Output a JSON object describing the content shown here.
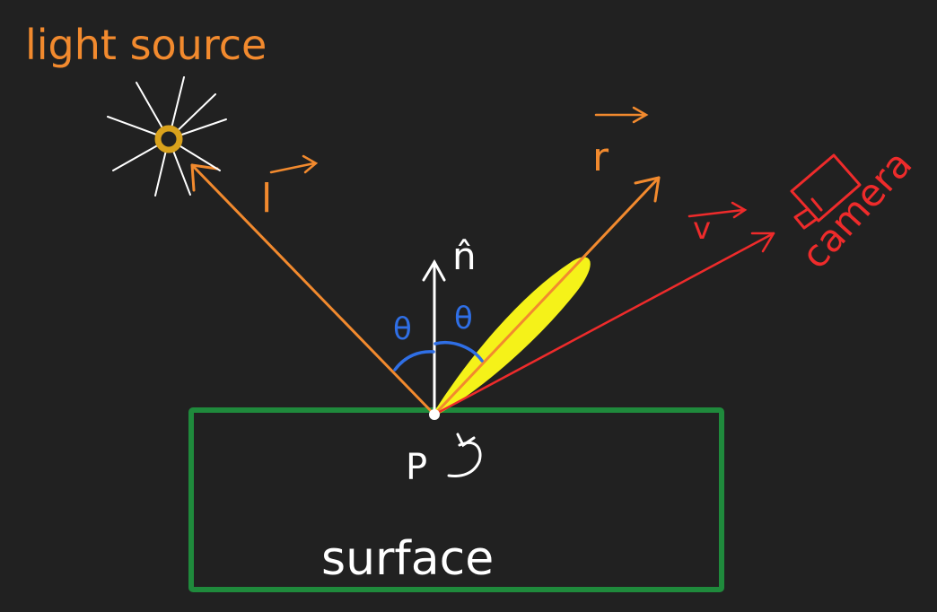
{
  "labels": {
    "light_source": "light source",
    "camera": "camera",
    "surface": "surface",
    "point": "P",
    "theta_left": "θ",
    "theta_right": "θ",
    "normal": "n̂",
    "light_vector": "l",
    "reflection_vector": "r",
    "view_vector": "v"
  },
  "colors": {
    "background": "#212121",
    "orange": "#f28a2e",
    "white": "#ffffff",
    "blue": "#2f6fe6",
    "red": "#ee2b2b",
    "yellow": "#f5f219",
    "green": "#1f8a3c",
    "sun_core": "#d9a21c"
  },
  "icons": {
    "light": "sun-icon",
    "camera": "camera-icon"
  }
}
